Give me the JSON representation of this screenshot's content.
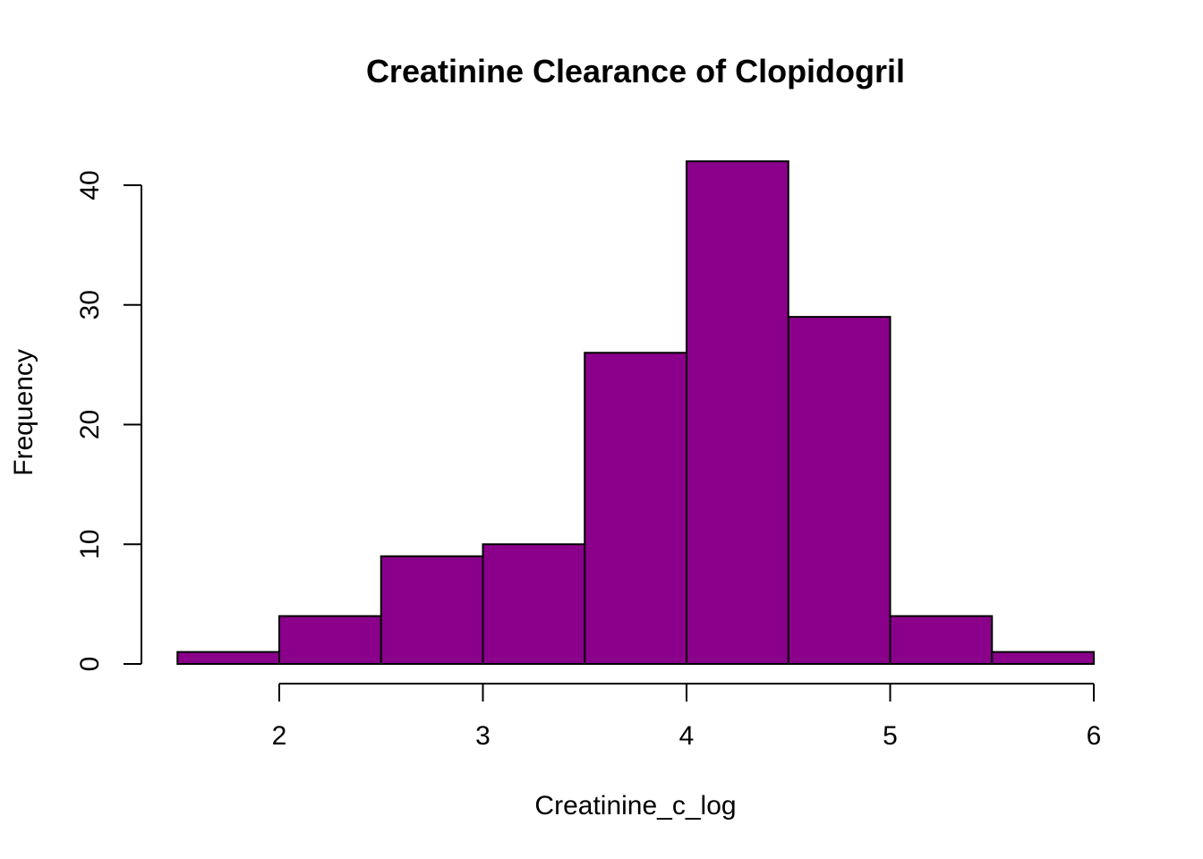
{
  "chart_data": {
    "type": "bar",
    "title": "Creatinine Clearance of Clopidogril",
    "xlabel": "Creatinine_c_log",
    "ylabel": "Frequency",
    "bins": [
      {
        "start": 1.5,
        "end": 2.0,
        "value": 1
      },
      {
        "start": 2.0,
        "end": 2.5,
        "value": 4
      },
      {
        "start": 2.5,
        "end": 3.0,
        "value": 9
      },
      {
        "start": 3.0,
        "end": 3.5,
        "value": 10
      },
      {
        "start": 3.5,
        "end": 4.0,
        "value": 26
      },
      {
        "start": 4.0,
        "end": 4.5,
        "value": 42
      },
      {
        "start": 4.5,
        "end": 5.0,
        "value": 29
      },
      {
        "start": 5.0,
        "end": 5.5,
        "value": 4
      },
      {
        "start": 5.5,
        "end": 6.0,
        "value": 1
      }
    ],
    "xticks": [
      "2",
      "3",
      "4",
      "5",
      "6"
    ],
    "yticks": [
      "0",
      "10",
      "20",
      "30",
      "40"
    ],
    "xlim": [
      1.5,
      6.0
    ],
    "ylim": [
      0,
      42
    ],
    "bar_color": "#8B008B",
    "grid": false,
    "legend": "none"
  }
}
